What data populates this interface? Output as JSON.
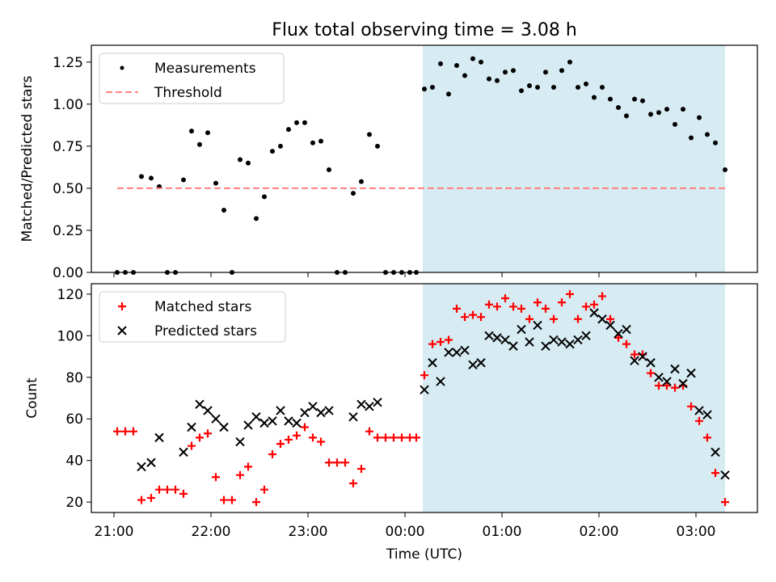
{
  "title": "Flux total observing time = 3.08 h",
  "xlabel": "Time (UTC)",
  "colors": {
    "measurement": "#000000",
    "threshold": "#ff7f7f",
    "matched": "#ff0000",
    "predicted": "#000000",
    "span": "#add8e6"
  },
  "chart_data": [
    {
      "type": "scatter",
      "panel": "top",
      "ylabel": "Matched/Predicted stars",
      "ylim": [
        0,
        1.35
      ],
      "yticks": [
        0,
        0.25,
        0.5,
        0.75,
        1.0,
        1.25
      ],
      "ytick_labels": [
        "0.00",
        "0.25",
        "0.50",
        "0.75",
        "1.00",
        "1.25"
      ],
      "xlim": [
        "20:46",
        "03:38"
      ],
      "grid": false,
      "legend": "top-left",
      "shaded_span": [
        "00:11",
        "03:18"
      ],
      "series": [
        {
          "name": "Measurements",
          "marker": "dot",
          "points": [
            [
              "21:02",
              0
            ],
            [
              "21:07",
              0
            ],
            [
              "21:12",
              0
            ],
            [
              "21:17",
              0.57
            ],
            [
              "21:23",
              0.56
            ],
            [
              "21:28",
              0.51
            ],
            [
              "21:33",
              0
            ],
            [
              "21:38",
              0
            ],
            [
              "21:43",
              0.55
            ],
            [
              "21:48",
              0.84
            ],
            [
              "21:53",
              0.76
            ],
            [
              "21:58",
              0.83
            ],
            [
              "22:03",
              0.53
            ],
            [
              "22:08",
              0.37
            ],
            [
              "22:13",
              0
            ],
            [
              "22:18",
              0.67
            ],
            [
              "22:23",
              0.65
            ],
            [
              "22:28",
              0.32
            ],
            [
              "22:33",
              0.45
            ],
            [
              "22:38",
              0.72
            ],
            [
              "22:43",
              0.75
            ],
            [
              "22:48",
              0.85
            ],
            [
              "22:53",
              0.89
            ],
            [
              "22:58",
              0.89
            ],
            [
              "23:03",
              0.77
            ],
            [
              "23:08",
              0.78
            ],
            [
              "23:13",
              0.61
            ],
            [
              "23:18",
              0
            ],
            [
              "23:23",
              0
            ],
            [
              "23:28",
              0.47
            ],
            [
              "23:33",
              0.54
            ],
            [
              "23:38",
              0.82
            ],
            [
              "23:43",
              0.75
            ],
            [
              "23:48",
              0
            ],
            [
              "23:53",
              0
            ],
            [
              "23:58",
              0
            ],
            [
              "00:03",
              0
            ],
            [
              "00:07",
              0
            ],
            [
              "00:12",
              1.09
            ],
            [
              "00:17",
              1.1
            ],
            [
              "00:22",
              1.24
            ],
            [
              "00:27",
              1.06
            ],
            [
              "00:32",
              1.23
            ],
            [
              "00:37",
              1.17
            ],
            [
              "00:42",
              1.27
            ],
            [
              "00:47",
              1.25
            ],
            [
              "00:52",
              1.15
            ],
            [
              "00:57",
              1.14
            ],
            [
              "01:02",
              1.19
            ],
            [
              "01:07",
              1.2
            ],
            [
              "01:12",
              1.08
            ],
            [
              "01:17",
              1.11
            ],
            [
              "01:22",
              1.1
            ],
            [
              "01:27",
              1.19
            ],
            [
              "01:32",
              1.1
            ],
            [
              "01:37",
              1.2
            ],
            [
              "01:42",
              1.25
            ],
            [
              "01:47",
              1.1
            ],
            [
              "01:52",
              1.12
            ],
            [
              "01:57",
              1.04
            ],
            [
              "02:02",
              1.1
            ],
            [
              "02:07",
              1.03
            ],
            [
              "02:12",
              0.98
            ],
            [
              "02:17",
              0.93
            ],
            [
              "02:22",
              1.03
            ],
            [
              "02:27",
              1.02
            ],
            [
              "02:32",
              0.94
            ],
            [
              "02:37",
              0.95
            ],
            [
              "02:42",
              0.97
            ],
            [
              "02:47",
              0.88
            ],
            [
              "02:52",
              0.97
            ],
            [
              "02:57",
              0.8
            ],
            [
              "03:02",
              0.92
            ],
            [
              "03:07",
              0.82
            ],
            [
              "03:12",
              0.77
            ],
            [
              "03:18",
              0.61
            ]
          ]
        },
        {
          "name": "Threshold",
          "marker": "dashed-line",
          "points": [
            [
              "21:02",
              0.5
            ],
            [
              "03:18",
              0.5
            ]
          ]
        }
      ]
    },
    {
      "type": "scatter",
      "panel": "bottom",
      "ylabel": "Count",
      "ylim": [
        15,
        125
      ],
      "yticks": [
        20,
        40,
        60,
        80,
        100,
        120
      ],
      "ytick_labels": [
        "20",
        "40",
        "60",
        "80",
        "100",
        "120"
      ],
      "xlim": [
        "20:46",
        "03:38"
      ],
      "xticks": [
        "21:00",
        "22:00",
        "23:00",
        "00:00",
        "01:00",
        "02:00",
        "03:00"
      ],
      "grid": false,
      "legend": "top-left",
      "shaded_span": [
        "00:11",
        "03:18"
      ],
      "series": [
        {
          "name": "Matched stars",
          "marker": "plus",
          "points": [
            [
              "21:02",
              54
            ],
            [
              "21:07",
              54
            ],
            [
              "21:12",
              54
            ],
            [
              "21:17",
              21
            ],
            [
              "21:23",
              22
            ],
            [
              "21:28",
              26
            ],
            [
              "21:33",
              26
            ],
            [
              "21:38",
              26
            ],
            [
              "21:43",
              24
            ],
            [
              "21:48",
              47
            ],
            [
              "21:53",
              51
            ],
            [
              "21:58",
              53
            ],
            [
              "22:03",
              32
            ],
            [
              "22:08",
              21
            ],
            [
              "22:13",
              21
            ],
            [
              "22:18",
              33
            ],
            [
              "22:23",
              37
            ],
            [
              "22:28",
              20
            ],
            [
              "22:33",
              26
            ],
            [
              "22:38",
              43
            ],
            [
              "22:43",
              48
            ],
            [
              "22:48",
              50
            ],
            [
              "22:53",
              52
            ],
            [
              "22:58",
              56
            ],
            [
              "23:03",
              51
            ],
            [
              "23:08",
              49
            ],
            [
              "23:13",
              39
            ],
            [
              "23:18",
              39
            ],
            [
              "23:23",
              39
            ],
            [
              "23:28",
              29
            ],
            [
              "23:33",
              36
            ],
            [
              "23:38",
              54
            ],
            [
              "23:43",
              51
            ],
            [
              "23:48",
              51
            ],
            [
              "23:53",
              51
            ],
            [
              "23:58",
              51
            ],
            [
              "00:03",
              51
            ],
            [
              "00:07",
              51
            ],
            [
              "00:12",
              81
            ],
            [
              "00:17",
              96
            ],
            [
              "00:22",
              97
            ],
            [
              "00:27",
              98
            ],
            [
              "00:32",
              113
            ],
            [
              "00:37",
              109
            ],
            [
              "00:42",
              110
            ],
            [
              "00:47",
              109
            ],
            [
              "00:52",
              115
            ],
            [
              "00:57",
              114
            ],
            [
              "01:02",
              118
            ],
            [
              "01:07",
              114
            ],
            [
              "01:12",
              113
            ],
            [
              "01:17",
              108
            ],
            [
              "01:22",
              116
            ],
            [
              "01:27",
              113
            ],
            [
              "01:32",
              108
            ],
            [
              "01:37",
              116
            ],
            [
              "01:42",
              120
            ],
            [
              "01:47",
              108
            ],
            [
              "01:52",
              114
            ],
            [
              "01:57",
              115
            ],
            [
              "02:02",
              119
            ],
            [
              "02:07",
              108
            ],
            [
              "02:12",
              99
            ],
            [
              "02:17",
              96
            ],
            [
              "02:22",
              91
            ],
            [
              "02:27",
              91
            ],
            [
              "02:32",
              82
            ],
            [
              "02:37",
              76
            ],
            [
              "02:42",
              76
            ],
            [
              "02:47",
              75
            ],
            [
              "02:52",
              76
            ],
            [
              "02:57",
              66
            ],
            [
              "03:02",
              59
            ],
            [
              "03:07",
              51
            ],
            [
              "03:12",
              34
            ],
            [
              "03:18",
              20
            ]
          ]
        },
        {
          "name": "Predicted stars",
          "marker": "x",
          "points": [
            [
              "21:17",
              37
            ],
            [
              "21:23",
              39
            ],
            [
              "21:28",
              51
            ],
            [
              "21:43",
              44
            ],
            [
              "21:48",
              56
            ],
            [
              "21:53",
              67
            ],
            [
              "21:58",
              64
            ],
            [
              "22:03",
              60
            ],
            [
              "22:08",
              56
            ],
            [
              "22:18",
              49
            ],
            [
              "22:23",
              57
            ],
            [
              "22:28",
              61
            ],
            [
              "22:33",
              58
            ],
            [
              "22:38",
              59
            ],
            [
              "22:43",
              64
            ],
            [
              "22:48",
              59
            ],
            [
              "22:53",
              58
            ],
            [
              "22:58",
              63
            ],
            [
              "23:03",
              66
            ],
            [
              "23:08",
              63
            ],
            [
              "23:13",
              64
            ],
            [
              "23:28",
              61
            ],
            [
              "23:33",
              67
            ],
            [
              "23:38",
              66
            ],
            [
              "23:43",
              68
            ],
            [
              "00:12",
              74
            ],
            [
              "00:17",
              87
            ],
            [
              "00:22",
              78
            ],
            [
              "00:27",
              92
            ],
            [
              "00:32",
              92
            ],
            [
              "00:37",
              93
            ],
            [
              "00:42",
              86
            ],
            [
              "00:47",
              87
            ],
            [
              "00:52",
              100
            ],
            [
              "00:57",
              99
            ],
            [
              "01:02",
              98
            ],
            [
              "01:07",
              95
            ],
            [
              "01:12",
              103
            ],
            [
              "01:17",
              97
            ],
            [
              "01:22",
              105
            ],
            [
              "01:27",
              95
            ],
            [
              "01:32",
              98
            ],
            [
              "01:37",
              97
            ],
            [
              "01:42",
              96
            ],
            [
              "01:47",
              98
            ],
            [
              "01:52",
              100
            ],
            [
              "01:57",
              111
            ],
            [
              "02:02",
              108
            ],
            [
              "02:07",
              105
            ],
            [
              "02:12",
              101
            ],
            [
              "02:17",
              103
            ],
            [
              "02:22",
              88
            ],
            [
              "02:27",
              90
            ],
            [
              "02:32",
              87
            ],
            [
              "02:37",
              80
            ],
            [
              "02:42",
              78
            ],
            [
              "02:47",
              84
            ],
            [
              "02:52",
              77
            ],
            [
              "02:57",
              82
            ],
            [
              "03:02",
              64
            ],
            [
              "03:07",
              62
            ],
            [
              "03:12",
              44
            ],
            [
              "03:18",
              33
            ]
          ]
        }
      ]
    }
  ]
}
